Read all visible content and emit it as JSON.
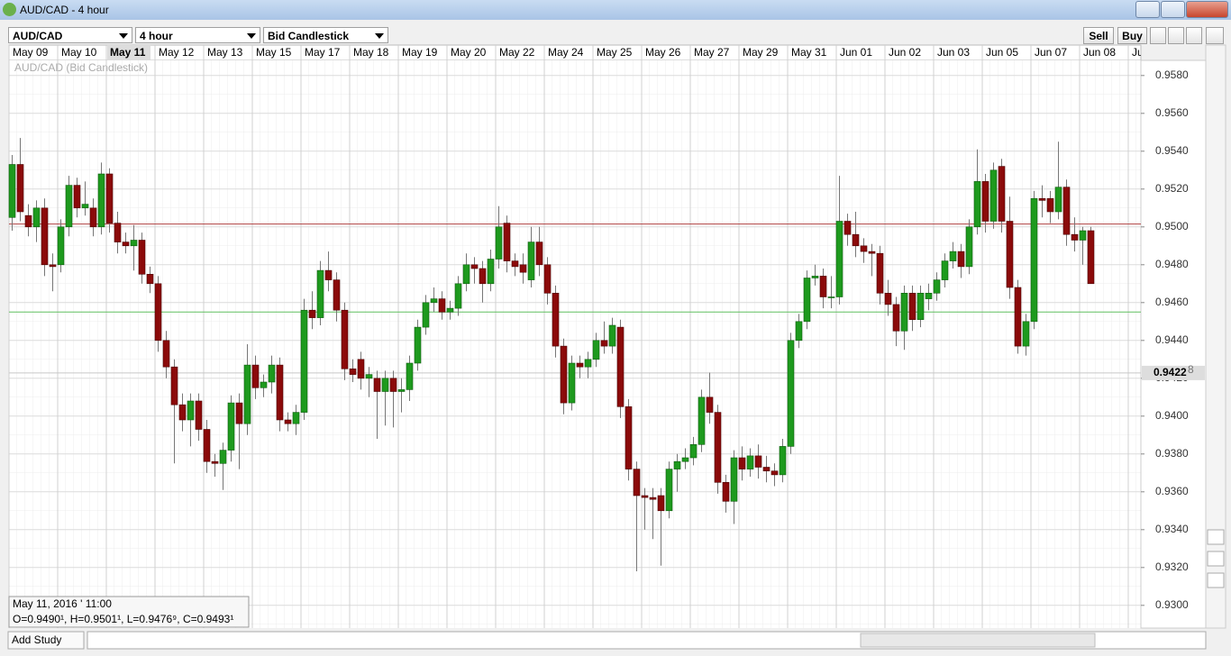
{
  "window": {
    "title": "AUD/CAD - 4 hour"
  },
  "toolbar": {
    "instrument": "AUD/CAD",
    "period": "4 hour",
    "chart_style": "Bid Candlestick",
    "sell": "Sell",
    "buy": "Buy"
  },
  "footer": {
    "add_study": "Add Study"
  },
  "info_box": {
    "time": "May 11, 2016 ' 11:00",
    "ohlc": "O=0.9490¹, H=0.9501¹, L=0.9476⁹, C=0.9493¹"
  },
  "chart_data": {
    "type": "candlestick",
    "subtitle": "AUD/CAD (Bid Candlestick)",
    "x_labels": [
      "May 09",
      "May 10",
      "May 11",
      "May 12",
      "May 13",
      "May 15",
      "May 17",
      "May 18",
      "May 19",
      "May 20",
      "May 22",
      "May 24",
      "May 25",
      "May 26",
      "May 27",
      "May 29",
      "May 31",
      "Jun 01",
      "Jun 02",
      "Jun 03",
      "Jun 05",
      "Jun 07",
      "Jun 08",
      "Ju"
    ],
    "highlighted_label": 2,
    "ylim": [
      0.9288,
      0.9588
    ],
    "yticks": [
      {
        "value": 0.93,
        "label": "0.9300"
      },
      {
        "value": 0.932,
        "label": "0.9320"
      },
      {
        "value": 0.934,
        "label": "0.9340"
      },
      {
        "value": 0.936,
        "label": "0.9360"
      },
      {
        "value": 0.938,
        "label": "0.9380"
      },
      {
        "value": 0.94,
        "label": "0.9400"
      },
      {
        "value": 0.942,
        "label": "0.9420"
      },
      {
        "value": 0.944,
        "label": "0.9440"
      },
      {
        "value": 0.946,
        "label": "0.9460"
      },
      {
        "value": 0.948,
        "label": "0.9480"
      },
      {
        "value": 0.95,
        "label": "0.9500"
      },
      {
        "value": 0.952,
        "label": "0.9520"
      },
      {
        "value": 0.954,
        "label": "0.9540"
      },
      {
        "value": 0.956,
        "label": "0.9560"
      },
      {
        "value": 0.958,
        "label": "0.9580"
      }
    ],
    "up_color": "#1e9a1e",
    "down_color": "#8b0a0a",
    "levels": [
      {
        "value": 0.95015,
        "color": "#b04040"
      },
      {
        "value": 0.9455,
        "color": "#60c060"
      }
    ],
    "current_price": {
      "value": 0.94228,
      "label": "0.9422",
      "pip": "8"
    },
    "ohlc": [
      [
        0.9505,
        0.9538,
        0.9498,
        0.9533
      ],
      [
        0.9533,
        0.9547,
        0.9503,
        0.9508
      ],
      [
        0.9506,
        0.9512,
        0.9495,
        0.95
      ],
      [
        0.95,
        0.9514,
        0.9492,
        0.951
      ],
      [
        0.951,
        0.9515,
        0.9474,
        0.948
      ],
      [
        0.948,
        0.9486,
        0.9466,
        0.9479
      ],
      [
        0.948,
        0.9504,
        0.9476,
        0.95
      ],
      [
        0.95,
        0.9527,
        0.9495,
        0.9522
      ],
      [
        0.9522,
        0.9526,
        0.9505,
        0.951
      ],
      [
        0.951,
        0.9524,
        0.9506,
        0.9512
      ],
      [
        0.951,
        0.9515,
        0.9495,
        0.95
      ],
      [
        0.95,
        0.9534,
        0.9496,
        0.9528
      ],
      [
        0.9528,
        0.9531,
        0.9497,
        0.9502
      ],
      [
        0.9502,
        0.9508,
        0.9486,
        0.9492
      ],
      [
        0.9492,
        0.9497,
        0.9486,
        0.949
      ],
      [
        0.949,
        0.9501,
        0.94769,
        0.9493
      ],
      [
        0.9493,
        0.9497,
        0.947,
        0.9475
      ],
      [
        0.9475,
        0.9479,
        0.9465,
        0.947
      ],
      [
        0.947,
        0.9474,
        0.9434,
        0.944
      ],
      [
        0.944,
        0.9445,
        0.942,
        0.9426
      ],
      [
        0.9426,
        0.943,
        0.9375,
        0.9406
      ],
      [
        0.9406,
        0.9412,
        0.9392,
        0.9398
      ],
      [
        0.9398,
        0.9412,
        0.9384,
        0.9408
      ],
      [
        0.9408,
        0.9412,
        0.9387,
        0.9393
      ],
      [
        0.9393,
        0.9398,
        0.937,
        0.9376
      ],
      [
        0.9376,
        0.938,
        0.9368,
        0.9375
      ],
      [
        0.9375,
        0.9386,
        0.9361,
        0.9382
      ],
      [
        0.9382,
        0.9411,
        0.9376,
        0.9407
      ],
      [
        0.9407,
        0.9412,
        0.9372,
        0.9396
      ],
      [
        0.9396,
        0.9438,
        0.939,
        0.9427
      ],
      [
        0.9427,
        0.9432,
        0.9409,
        0.9415
      ],
      [
        0.9415,
        0.9422,
        0.941,
        0.9418
      ],
      [
        0.9418,
        0.9432,
        0.9412,
        0.9427
      ],
      [
        0.9427,
        0.9431,
        0.9392,
        0.9398
      ],
      [
        0.9398,
        0.9402,
        0.9392,
        0.9396
      ],
      [
        0.9396,
        0.9406,
        0.939,
        0.9402
      ],
      [
        0.9402,
        0.9462,
        0.9398,
        0.9456
      ],
      [
        0.9456,
        0.9466,
        0.9446,
        0.9452
      ],
      [
        0.9452,
        0.9482,
        0.9448,
        0.9477
      ],
      [
        0.9477,
        0.9487,
        0.9466,
        0.9472
      ],
      [
        0.9472,
        0.9476,
        0.945,
        0.9456
      ],
      [
        0.9456,
        0.946,
        0.9419,
        0.9425
      ],
      [
        0.9425,
        0.943,
        0.9418,
        0.9422
      ],
      [
        0.943,
        0.9434,
        0.9414,
        0.942
      ],
      [
        0.942,
        0.9426,
        0.941,
        0.9422
      ],
      [
        0.942,
        0.9424,
        0.9388,
        0.9413
      ],
      [
        0.9413,
        0.9424,
        0.9395,
        0.942
      ],
      [
        0.942,
        0.9424,
        0.9394,
        0.9413
      ],
      [
        0.9413,
        0.942,
        0.9402,
        0.9414
      ],
      [
        0.9414,
        0.9432,
        0.9408,
        0.9428
      ],
      [
        0.9428,
        0.9451,
        0.9424,
        0.9447
      ],
      [
        0.9447,
        0.9464,
        0.9443,
        0.946
      ],
      [
        0.946,
        0.9468,
        0.9455,
        0.9462
      ],
      [
        0.9462,
        0.9466,
        0.9451,
        0.9455
      ],
      [
        0.9455,
        0.9461,
        0.9451,
        0.9457
      ],
      [
        0.9457,
        0.9474,
        0.9453,
        0.947
      ],
      [
        0.947,
        0.9486,
        0.9466,
        0.948
      ],
      [
        0.948,
        0.9484,
        0.947,
        0.9478
      ],
      [
        0.9478,
        0.9482,
        0.946,
        0.947
      ],
      [
        0.947,
        0.9488,
        0.9466,
        0.9483
      ],
      [
        0.9483,
        0.9511,
        0.9478,
        0.95
      ],
      [
        0.9502,
        0.9506,
        0.9476,
        0.9482
      ],
      [
        0.9482,
        0.9486,
        0.9474,
        0.9479
      ],
      [
        0.948,
        0.9486,
        0.947,
        0.9476
      ],
      [
        0.9472,
        0.95,
        0.9468,
        0.9492
      ],
      [
        0.9492,
        0.95,
        0.9474,
        0.948
      ],
      [
        0.948,
        0.9484,
        0.9459,
        0.9465
      ],
      [
        0.9465,
        0.9469,
        0.9431,
        0.9437
      ],
      [
        0.9437,
        0.9441,
        0.9401,
        0.9407
      ],
      [
        0.9407,
        0.9432,
        0.9403,
        0.9428
      ],
      [
        0.9428,
        0.9432,
        0.942,
        0.9426
      ],
      [
        0.9426,
        0.9434,
        0.942,
        0.943
      ],
      [
        0.943,
        0.9444,
        0.9426,
        0.944
      ],
      [
        0.944,
        0.945,
        0.9433,
        0.9437
      ],
      [
        0.9437,
        0.9452,
        0.9433,
        0.9448
      ],
      [
        0.9447,
        0.9451,
        0.9399,
        0.9405
      ],
      [
        0.9405,
        0.9409,
        0.9366,
        0.9372
      ],
      [
        0.9372,
        0.9376,
        0.9318,
        0.9358
      ],
      [
        0.9358,
        0.9362,
        0.934,
        0.9357
      ],
      [
        0.9357,
        0.9362,
        0.9335,
        0.9356
      ],
      [
        0.9358,
        0.9362,
        0.9321,
        0.935
      ],
      [
        0.935,
        0.9376,
        0.9346,
        0.9372
      ],
      [
        0.9372,
        0.938,
        0.936,
        0.9376
      ],
      [
        0.9376,
        0.9383,
        0.9372,
        0.9378
      ],
      [
        0.9378,
        0.9389,
        0.9374,
        0.9385
      ],
      [
        0.9385,
        0.9414,
        0.9381,
        0.941
      ],
      [
        0.941,
        0.9423,
        0.9396,
        0.9402
      ],
      [
        0.9402,
        0.9406,
        0.9359,
        0.9365
      ],
      [
        0.9365,
        0.9369,
        0.9349,
        0.9355
      ],
      [
        0.9355,
        0.9382,
        0.9343,
        0.9378
      ],
      [
        0.9378,
        0.9384,
        0.9366,
        0.9372
      ],
      [
        0.9372,
        0.9383,
        0.9368,
        0.9379
      ],
      [
        0.9379,
        0.9385,
        0.9367,
        0.9373
      ],
      [
        0.9373,
        0.9379,
        0.9365,
        0.9371
      ],
      [
        0.9371,
        0.9375,
        0.9363,
        0.9369
      ],
      [
        0.9369,
        0.9388,
        0.9365,
        0.9384
      ],
      [
        0.9384,
        0.9444,
        0.938,
        0.944
      ],
      [
        0.944,
        0.9454,
        0.9436,
        0.945
      ],
      [
        0.945,
        0.9477,
        0.9446,
        0.9473
      ],
      [
        0.9473,
        0.948,
        0.9469,
        0.9474
      ],
      [
        0.9474,
        0.9478,
        0.9457,
        0.9463
      ],
      [
        0.9463,
        0.9474,
        0.9457,
        0.9463
      ],
      [
        0.9463,
        0.9527,
        0.9459,
        0.9503
      ],
      [
        0.9503,
        0.9507,
        0.949,
        0.9496
      ],
      [
        0.9496,
        0.9508,
        0.9484,
        0.949
      ],
      [
        0.949,
        0.9494,
        0.9481,
        0.9487
      ],
      [
        0.9487,
        0.9491,
        0.9474,
        0.9486
      ],
      [
        0.9486,
        0.949,
        0.9459,
        0.9465
      ],
      [
        0.9465,
        0.9472,
        0.9453,
        0.9459
      ],
      [
        0.9459,
        0.9463,
        0.9437,
        0.9445
      ],
      [
        0.9445,
        0.9469,
        0.9435,
        0.9465
      ],
      [
        0.9465,
        0.9469,
        0.9445,
        0.9451
      ],
      [
        0.9451,
        0.9469,
        0.9447,
        0.9465
      ],
      [
        0.9462,
        0.947,
        0.9456,
        0.9465
      ],
      [
        0.9465,
        0.9476,
        0.9461,
        0.9472
      ],
      [
        0.9472,
        0.9486,
        0.9468,
        0.9482
      ],
      [
        0.9482,
        0.9492,
        0.9478,
        0.9487
      ],
      [
        0.9487,
        0.9491,
        0.9473,
        0.9479
      ],
      [
        0.9479,
        0.9504,
        0.9475,
        0.95
      ],
      [
        0.95,
        0.9541,
        0.9496,
        0.9524
      ],
      [
        0.9524,
        0.9528,
        0.9497,
        0.9503
      ],
      [
        0.9503,
        0.9534,
        0.9499,
        0.953
      ],
      [
        0.9532,
        0.9536,
        0.9497,
        0.9503
      ],
      [
        0.9503,
        0.9516,
        0.9462,
        0.9468
      ],
      [
        0.9468,
        0.9472,
        0.9433,
        0.9437
      ],
      [
        0.9437,
        0.9454,
        0.9432,
        0.945
      ],
      [
        0.945,
        0.9519,
        0.9446,
        0.9515
      ],
      [
        0.9515,
        0.9522,
        0.9505,
        0.9514
      ],
      [
        0.9515,
        0.9519,
        0.9502,
        0.9508
      ],
      [
        0.9508,
        0.9545,
        0.9504,
        0.9521
      ],
      [
        0.9521,
        0.9525,
        0.949,
        0.9496
      ],
      [
        0.9496,
        0.9505,
        0.9487,
        0.9493
      ],
      [
        0.9493,
        0.95,
        0.948,
        0.9498
      ],
      [
        0.9498,
        0.95,
        0.947,
        0.947
      ]
    ]
  }
}
